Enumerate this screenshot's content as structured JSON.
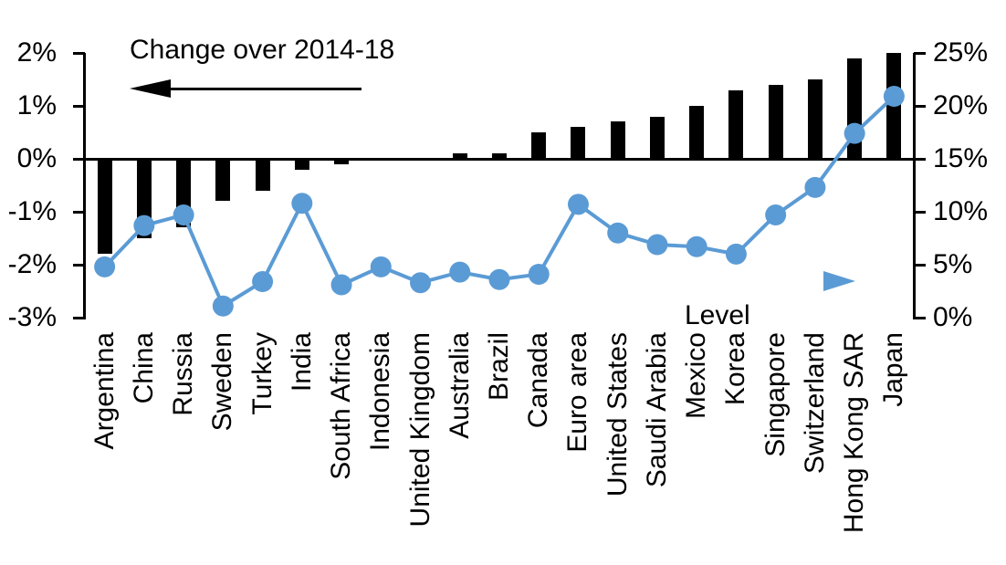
{
  "chart_data": {
    "type": "combo",
    "title": "Change over 2014-18",
    "categories": [
      "Argentina",
      "China",
      "Russia",
      "Sweden",
      "Turkey",
      "India",
      "South Africa",
      "Indonesia",
      "United Kingdom",
      "Australia",
      "Brazil",
      "Canada",
      "Euro area",
      "United States",
      "Saudi Arabia",
      "Mexico",
      "Korea",
      "Singapore",
      "Switzerland",
      "Hong Kong SAR",
      "Japan"
    ],
    "series": [
      {
        "name": "Change over 2014-18",
        "type": "bar",
        "axis": "left",
        "color": "#000000",
        "values": [
          -1.8,
          -1.5,
          -1.3,
          -0.8,
          -0.6,
          -0.2,
          -0.1,
          0,
          0,
          0.1,
          0.1,
          0.5,
          0.6,
          0.7,
          0.8,
          1.0,
          1.3,
          1.4,
          1.5,
          1.9,
          2.0
        ]
      },
      {
        "name": "Level",
        "type": "line",
        "axis": "right",
        "color": "#5B9BD5",
        "values": [
          4.8,
          8.7,
          9.7,
          1.1,
          3.4,
          10.8,
          3.1,
          4.8,
          3.3,
          4.3,
          3.6,
          4.1,
          10.7,
          8.0,
          6.9,
          6.7,
          6.0,
          9.7,
          12.3,
          17.4,
          20.9
        ]
      }
    ],
    "left_axis": {
      "min": -3,
      "max": 2,
      "tick_values": [
        2,
        1,
        0,
        -1,
        -2,
        -3
      ],
      "tick_labels": [
        "2%",
        "1%",
        "0%",
        "-1%",
        "-2%",
        "-3%"
      ]
    },
    "right_axis": {
      "min": 0,
      "max": 25,
      "tick_values": [
        25,
        20,
        15,
        10,
        5,
        0
      ],
      "tick_labels": [
        "25%",
        "20%",
        "15%",
        "10%",
        "5%",
        "0%"
      ]
    },
    "annotations": {
      "bar_series_label": "Change over 2014-18",
      "line_series_label": "Level"
    },
    "colors": {
      "bar": "#000000",
      "line": "#5B9BD5",
      "axis": "#000000",
      "background": "#FFFFFF"
    },
    "legend_position": "arrows-inside-plot",
    "grid": "off"
  }
}
